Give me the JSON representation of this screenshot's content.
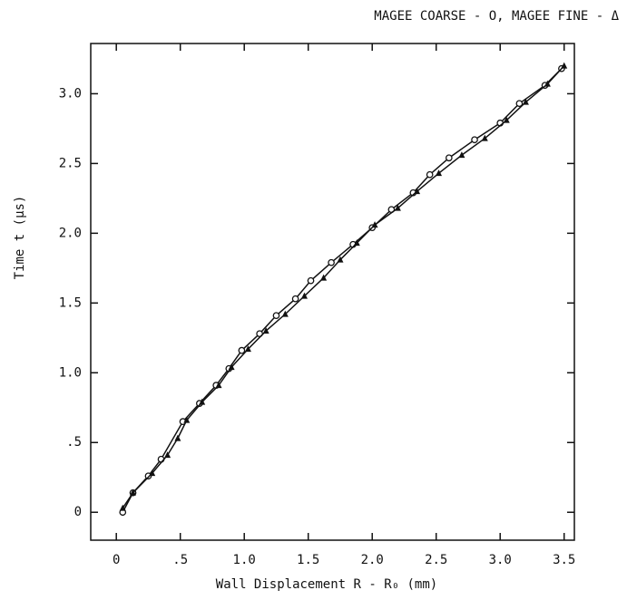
{
  "chart_data": {
    "type": "line",
    "title": "MAGEE COARSE - O, MAGEE FINE - Δ",
    "x_label": "Wall Displacement R - R₀ (mm)",
    "y_label": "Time t (μs)",
    "xlim": [
      -0.2,
      3.58
    ],
    "ylim": [
      -0.2,
      3.36
    ],
    "xticks": [
      0,
      {
        "value": 0.5,
        "label": ".5"
      },
      {
        "value": 1,
        "label": "1.0"
      },
      1.5,
      {
        "value": 2,
        "label": "2.0"
      },
      2.5,
      {
        "value": 3,
        "label": "3.0"
      },
      3.5
    ],
    "yticks": [
      0,
      {
        "value": 0.5,
        "label": ".5"
      },
      {
        "value": 1,
        "label": "1.0"
      },
      1.5,
      {
        "value": 2,
        "label": "2.0"
      },
      2.5,
      {
        "value": 3,
        "label": "3.0"
      }
    ],
    "series": [
      {
        "name": "MAGEE COARSE",
        "marker": "circle",
        "color": "#111111",
        "x": [
          0.05,
          0.13,
          0.25,
          0.35,
          0.52,
          0.65,
          0.78,
          0.88,
          0.98,
          1.12,
          1.25,
          1.4,
          1.52,
          1.68,
          1.85,
          2.0,
          2.15,
          2.32,
          2.45,
          2.6,
          2.8,
          3.0,
          3.15,
          3.35,
          3.48
        ],
        "values": [
          0.0,
          0.14,
          0.26,
          0.38,
          0.65,
          0.78,
          0.91,
          1.03,
          1.16,
          1.28,
          1.41,
          1.53,
          1.66,
          1.79,
          1.92,
          2.04,
          2.17,
          2.29,
          2.42,
          2.54,
          2.67,
          2.79,
          2.93,
          3.06,
          3.18
        ]
      },
      {
        "name": "MAGEE FINE",
        "marker": "triangle",
        "color": "#111111",
        "x": [
          0.05,
          0.13,
          0.28,
          0.4,
          0.48,
          0.55,
          0.67,
          0.8,
          0.9,
          1.03,
          1.17,
          1.32,
          1.47,
          1.62,
          1.75,
          1.88,
          2.02,
          2.2,
          2.35,
          2.52,
          2.7,
          2.88,
          3.05,
          3.2,
          3.37,
          3.5
        ],
        "values": [
          0.03,
          0.14,
          0.28,
          0.41,
          0.53,
          0.66,
          0.79,
          0.91,
          1.04,
          1.17,
          1.3,
          1.42,
          1.55,
          1.68,
          1.81,
          1.93,
          2.06,
          2.18,
          2.3,
          2.43,
          2.56,
          2.68,
          2.81,
          2.94,
          3.07,
          3.2
        ]
      }
    ]
  }
}
